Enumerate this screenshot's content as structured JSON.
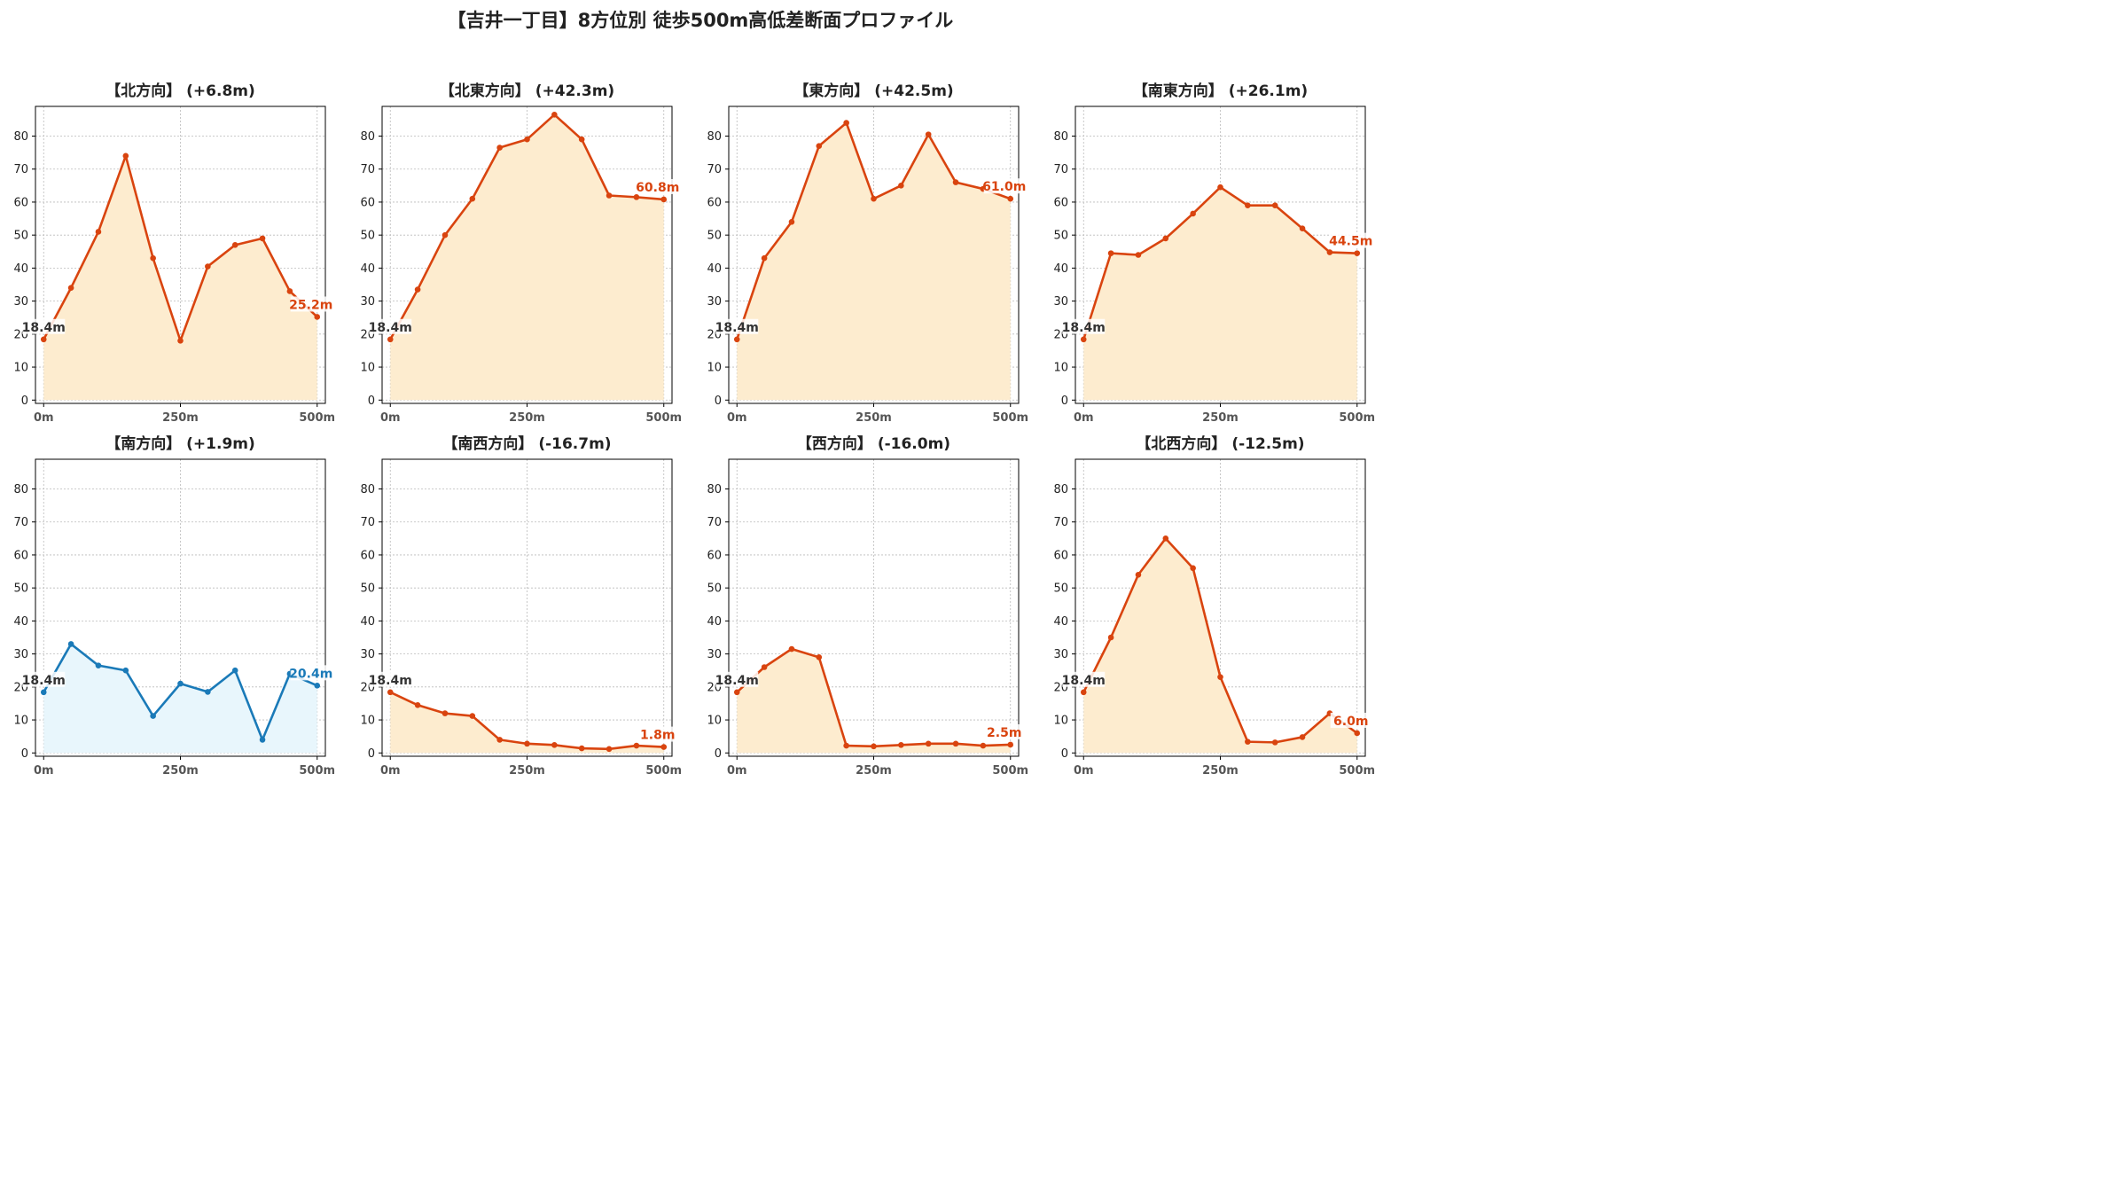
{
  "suptitle": "【吉井一丁目】8方位別 徒歩500m高低差断面プロファイル",
  "colors": {
    "up_line": "#d9440f",
    "up_fill": "#fdeccf",
    "down_line": "#1a7ab8",
    "down_fill": "#e8f6fc",
    "start_label": "#333333",
    "grid": "#bbbbbb"
  },
  "chart_data": [
    {
      "type": "area",
      "title": "【北方向】 (+6.8m)",
      "style": "up",
      "x": [
        0,
        50,
        100,
        150,
        200,
        250,
        300,
        350,
        400,
        450,
        500
      ],
      "y": [
        18.4,
        34,
        51,
        74,
        43,
        18,
        40.5,
        47,
        49,
        33,
        25.2
      ],
      "start_label": "18.4m",
      "end_label": "25.2m",
      "xticks": [
        0,
        250,
        500
      ],
      "xticklabels": [
        "0m",
        "250m",
        "500m"
      ],
      "yticks": [
        0,
        10,
        20,
        30,
        40,
        50,
        60,
        70,
        80
      ],
      "ylim": [
        -1,
        89
      ],
      "grid": true
    },
    {
      "type": "area",
      "title": "【北東方向】 (+42.3m)",
      "style": "up",
      "x": [
        0,
        50,
        100,
        150,
        200,
        250,
        300,
        350,
        400,
        450,
        500
      ],
      "y": [
        18.4,
        33.5,
        50,
        61,
        76.5,
        79,
        86.5,
        79,
        62,
        61.5,
        60.8
      ],
      "start_label": "18.4m",
      "end_label": "60.8m",
      "xticks": [
        0,
        250,
        500
      ],
      "xticklabels": [
        "0m",
        "250m",
        "500m"
      ],
      "yticks": [
        0,
        10,
        20,
        30,
        40,
        50,
        60,
        70,
        80
      ],
      "ylim": [
        -1,
        89
      ],
      "grid": true
    },
    {
      "type": "area",
      "title": "【東方向】 (+42.5m)",
      "style": "up",
      "x": [
        0,
        50,
        100,
        150,
        200,
        250,
        300,
        350,
        400,
        450,
        500
      ],
      "y": [
        18.4,
        43,
        54,
        77,
        84,
        61,
        65,
        80.5,
        66,
        64,
        61.0
      ],
      "start_label": "18.4m",
      "end_label": "61.0m",
      "xticks": [
        0,
        250,
        500
      ],
      "xticklabels": [
        "0m",
        "250m",
        "500m"
      ],
      "yticks": [
        0,
        10,
        20,
        30,
        40,
        50,
        60,
        70,
        80
      ],
      "ylim": [
        -1,
        89
      ],
      "grid": true
    },
    {
      "type": "area",
      "title": "【南東方向】 (+26.1m)",
      "style": "up",
      "x": [
        0,
        50,
        100,
        150,
        200,
        250,
        300,
        350,
        400,
        450,
        500
      ],
      "y": [
        18.4,
        44.5,
        44,
        49,
        56.5,
        64.5,
        59,
        59,
        52,
        44.8,
        44.5
      ],
      "start_label": "18.4m",
      "end_label": "44.5m",
      "xticks": [
        0,
        250,
        500
      ],
      "xticklabels": [
        "0m",
        "250m",
        "500m"
      ],
      "yticks": [
        0,
        10,
        20,
        30,
        40,
        50,
        60,
        70,
        80
      ],
      "ylim": [
        -1,
        89
      ],
      "grid": true
    },
    {
      "type": "area",
      "title": "【南方向】 (+1.9m)",
      "style": "down",
      "x": [
        0,
        50,
        100,
        150,
        200,
        250,
        300,
        350,
        400,
        450,
        500
      ],
      "y": [
        18.4,
        33,
        26.5,
        25,
        11.2,
        21,
        18.5,
        25,
        4,
        24,
        20.4
      ],
      "start_label": "18.4m",
      "end_label": "20.4m",
      "xticks": [
        0,
        250,
        500
      ],
      "xticklabels": [
        "0m",
        "250m",
        "500m"
      ],
      "yticks": [
        0,
        10,
        20,
        30,
        40,
        50,
        60,
        70,
        80
      ],
      "ylim": [
        -1,
        89
      ],
      "grid": true
    },
    {
      "type": "area",
      "title": "【南西方向】 (-16.7m)",
      "style": "up",
      "x": [
        0,
        50,
        100,
        150,
        200,
        250,
        300,
        350,
        400,
        450,
        500
      ],
      "y": [
        18.4,
        14.5,
        12,
        11.2,
        4,
        2.8,
        2.4,
        1.4,
        1.2,
        2.2,
        1.8
      ],
      "start_label": "18.4m",
      "end_label": "1.8m",
      "xticks": [
        0,
        250,
        500
      ],
      "xticklabels": [
        "0m",
        "250m",
        "500m"
      ],
      "yticks": [
        0,
        10,
        20,
        30,
        40,
        50,
        60,
        70,
        80
      ],
      "ylim": [
        -1,
        89
      ],
      "grid": true
    },
    {
      "type": "area",
      "title": "【西方向】 (-16.0m)",
      "style": "up",
      "x": [
        0,
        50,
        100,
        150,
        200,
        250,
        300,
        350,
        400,
        450,
        500
      ],
      "y": [
        18.4,
        26,
        31.5,
        29,
        2.2,
        2,
        2.4,
        2.8,
        2.8,
        2.2,
        2.5
      ],
      "start_label": "18.4m",
      "end_label": "2.5m",
      "xticks": [
        0,
        250,
        500
      ],
      "xticklabels": [
        "0m",
        "250m",
        "500m"
      ],
      "yticks": [
        0,
        10,
        20,
        30,
        40,
        50,
        60,
        70,
        80
      ],
      "ylim": [
        -1,
        89
      ],
      "grid": true
    },
    {
      "type": "area",
      "title": "【北西方向】 (-12.5m)",
      "style": "up",
      "x": [
        0,
        50,
        100,
        150,
        200,
        250,
        300,
        350,
        400,
        450,
        500
      ],
      "y": [
        18.4,
        35,
        54,
        65,
        56,
        23,
        3.4,
        3.2,
        4.8,
        12,
        6.0
      ],
      "start_label": "18.4m",
      "end_label": "6.0m",
      "xticks": [
        0,
        250,
        500
      ],
      "xticklabels": [
        "0m",
        "250m",
        "500m"
      ],
      "yticks": [
        0,
        10,
        20,
        30,
        40,
        50,
        60,
        70,
        80
      ],
      "ylim": [
        -1,
        89
      ],
      "grid": true
    }
  ]
}
